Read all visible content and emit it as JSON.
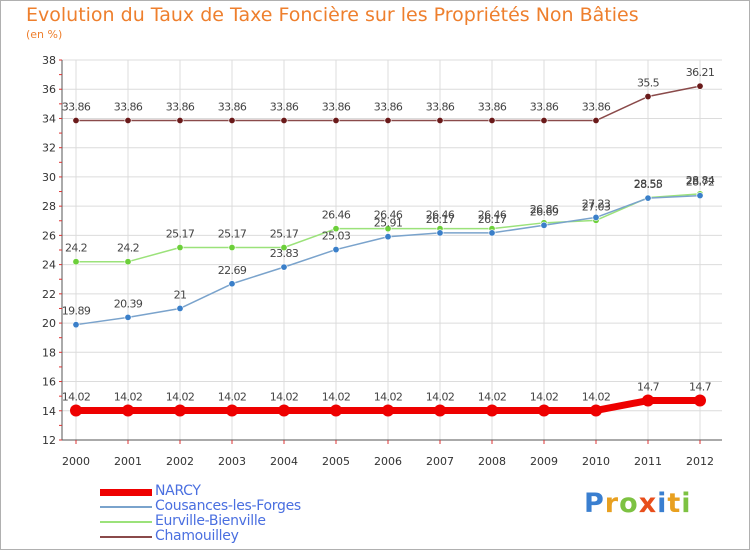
{
  "title": "Evolution du Taux de Taxe Foncière sur les Propriétés Non Bâties",
  "unit": "(en %)",
  "logo": {
    "letters": [
      {
        "ch": "P",
        "color": "#3a7fd0"
      },
      {
        "ch": "r",
        "color": "#e8a020"
      },
      {
        "ch": "o",
        "color": "#7dc242"
      },
      {
        "ch": "x",
        "color": "#e84e1b"
      },
      {
        "ch": "i",
        "color": "#3a7fd0"
      },
      {
        "ch": "t",
        "color": "#e8a020"
      },
      {
        "ch": "i",
        "color": "#7dc242"
      }
    ]
  },
  "chart_data": {
    "type": "line",
    "x": [
      2000,
      2001,
      2002,
      2003,
      2004,
      2005,
      2006,
      2007,
      2008,
      2009,
      2010,
      2011,
      2012
    ],
    "ylim": [
      12,
      38
    ],
    "yticks": [
      12,
      14,
      16,
      18,
      20,
      22,
      24,
      26,
      28,
      30,
      32,
      34,
      36,
      38
    ],
    "grid": true,
    "legend": "bottom-left",
    "series": [
      {
        "name": "NARCY",
        "color": "#ee0000",
        "marker": "#ee0000",
        "width": 7,
        "values": [
          14.02,
          14.02,
          14.02,
          14.02,
          14.02,
          14.02,
          14.02,
          14.02,
          14.02,
          14.02,
          14.02,
          14.7,
          14.7
        ],
        "labels": [
          "14.02",
          "14.02",
          "14.02",
          "14.02",
          "14.02",
          "14.02",
          "14.02",
          "14.02",
          "14.02",
          "14.02",
          "14.02",
          "14.7",
          "14.7"
        ]
      },
      {
        "name": "Cousances-les-Forges",
        "color": "#7aa3cc",
        "marker": "#3a7fc9",
        "width": 1.5,
        "values": [
          19.89,
          20.39,
          21,
          22.69,
          23.83,
          25.03,
          25.91,
          26.17,
          26.17,
          26.69,
          27.23,
          28.55,
          28.72
        ],
        "labels": [
          "19.89",
          "20.39",
          "21",
          "22.69",
          "23.83",
          "25.03",
          "25.91",
          "26.17",
          "26.17",
          "26.69",
          "27.23",
          "28.55",
          "28.72"
        ]
      },
      {
        "name": "Eurville-Bienville",
        "color": "#9be27a",
        "marker": "#6ccf3a",
        "width": 1.5,
        "values": [
          24.2,
          24.2,
          25.17,
          25.17,
          25.17,
          26.46,
          26.46,
          26.46,
          26.46,
          26.86,
          27.03,
          28.58,
          28.84
        ],
        "labels": [
          "24.2",
          "24.2",
          "25.17",
          "25.17",
          "25.17",
          "26.46",
          "26.46",
          "26.46",
          "26.46",
          "26.86",
          "27.03",
          "28.58",
          "28.84"
        ]
      },
      {
        "name": "Chamouilley",
        "color": "#8a4a4a",
        "marker": "#6a1a1a",
        "width": 1.5,
        "values": [
          33.86,
          33.86,
          33.86,
          33.86,
          33.86,
          33.86,
          33.86,
          33.86,
          33.86,
          33.86,
          33.86,
          35.5,
          36.21
        ],
        "labels": [
          "33.86",
          "33.86",
          "33.86",
          "33.86",
          "33.86",
          "33.86",
          "33.86",
          "33.86",
          "33.86",
          "33.86",
          "33.86",
          "35.5",
          "36.21"
        ]
      }
    ]
  }
}
